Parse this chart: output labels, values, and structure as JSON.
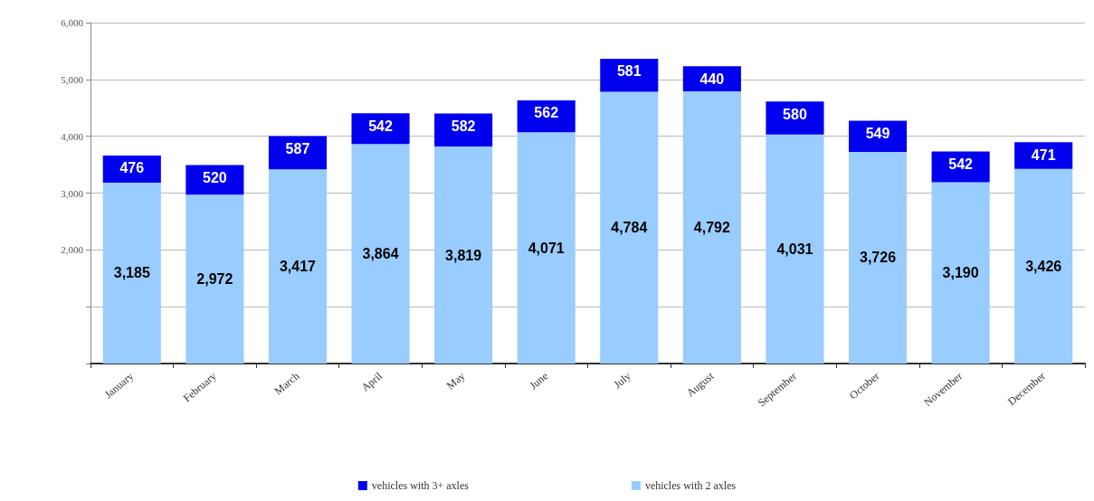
{
  "chart_data": {
    "type": "bar",
    "stacked": true,
    "categories": [
      "January",
      "February",
      "March",
      "April",
      "May",
      "June",
      "July",
      "August",
      "September",
      "October",
      "November",
      "December"
    ],
    "series": [
      {
        "name": "vehicles with 2 axles",
        "color": "#99ccff",
        "values": [
          3185,
          2972,
          3417,
          3864,
          3819,
          4071,
          4784,
          4792,
          4031,
          3726,
          3190,
          3426
        ],
        "value_labels": [
          "3,185",
          "2,972",
          "3,417",
          "3,864",
          "3,819",
          "4,071",
          "4,784",
          "4,792",
          "4,031",
          "3,726",
          "3,190",
          "3,426"
        ]
      },
      {
        "name": "vehicles with 3+ axles",
        "color": "#0000ee",
        "values": [
          476,
          520,
          587,
          542,
          582,
          562,
          581,
          440,
          580,
          549,
          542,
          471
        ],
        "value_labels": [
          "476",
          "520",
          "587",
          "542",
          "582",
          "562",
          "581",
          "440",
          "580",
          "549",
          "542",
          "471"
        ]
      }
    ],
    "ylim": [
      0,
      6000
    ],
    "yticks": [
      {
        "value": 0,
        "label": null
      },
      {
        "value": 1000,
        "label": null
      },
      {
        "value": 2000,
        "label": "2,000"
      },
      {
        "value": 3000,
        "label": "3,000"
      },
      {
        "value": 4000,
        "label": "4,000"
      },
      {
        "value": 5000,
        "label": "5,000"
      },
      {
        "value": 6000,
        "label": "6,000"
      }
    ],
    "grid": "y",
    "legend": "bottom"
  }
}
